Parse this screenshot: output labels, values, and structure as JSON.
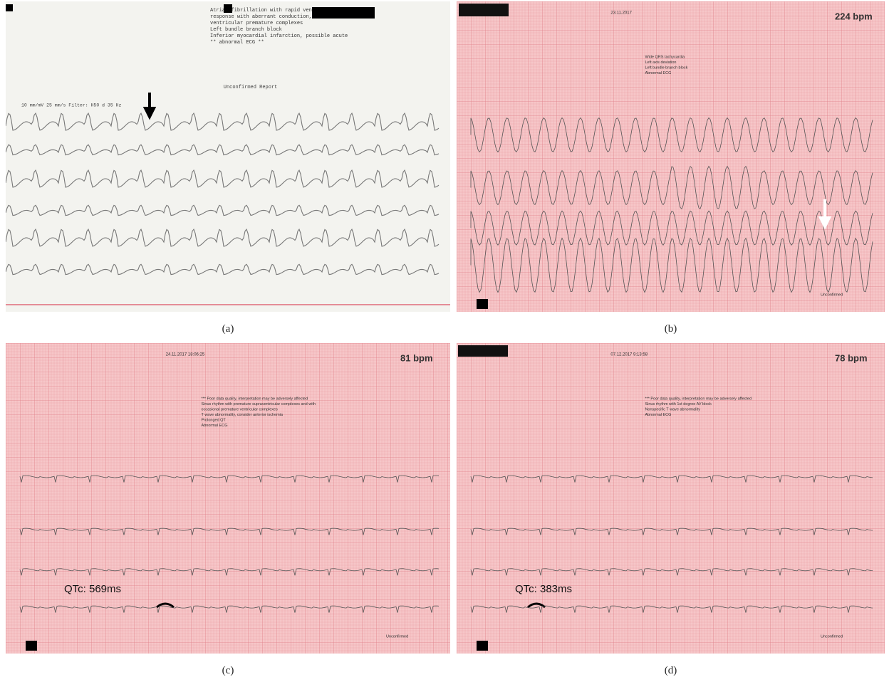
{
  "panels": [
    {
      "label": "(a)",
      "interpretation": [
        "Atrial fibrillation with rapid ventricular",
        "response with aberrant conduction, or",
        "ventricular premature complexes",
        "Left bundle branch block",
        "Inferior myocardial infarction, possible acute",
        "** abnormal ECG **"
      ],
      "status": "Unconfirmed Report",
      "calibration": "10 mm/mV 25 mm/s Filter: H50 d 35 Hz"
    },
    {
      "label": "(b)",
      "datetime": "23.11.2017",
      "rate": "224 bpm",
      "interpretation": [
        "Wide QRS tachycardia",
        "Left axis deviation",
        "Left bundle branch block",
        "Abnormal ECG"
      ],
      "status": "Unconfirmed"
    },
    {
      "label": "(c)",
      "datetime": "24.11.2017 18:06:25",
      "rate": "81 bpm",
      "interpretation": [
        "*** Poor data quality, interpretation may be adversely affected",
        "Sinus rhythm with premature supraventricular complexes and with",
        "occasional premature ventricular complexes",
        "T wave abnormality, consider anterior ischemia",
        "Prolonged QT",
        "Abnormal ECG"
      ],
      "qtc": "QTc: 569ms",
      "status": "Unconfirmed"
    },
    {
      "label": "(d)",
      "datetime": "07.12.2017 9:13:58",
      "rate": "78 bpm",
      "interpretation": [
        "*** Poor data quality, interpretation may be adversely affected",
        "Sinus rhythm with 1st degree AV block",
        "Nonspecific T wave abnormality",
        "Abnormal ECG"
      ],
      "qtc": "QTc: 383ms",
      "status": "Unconfirmed"
    }
  ]
}
